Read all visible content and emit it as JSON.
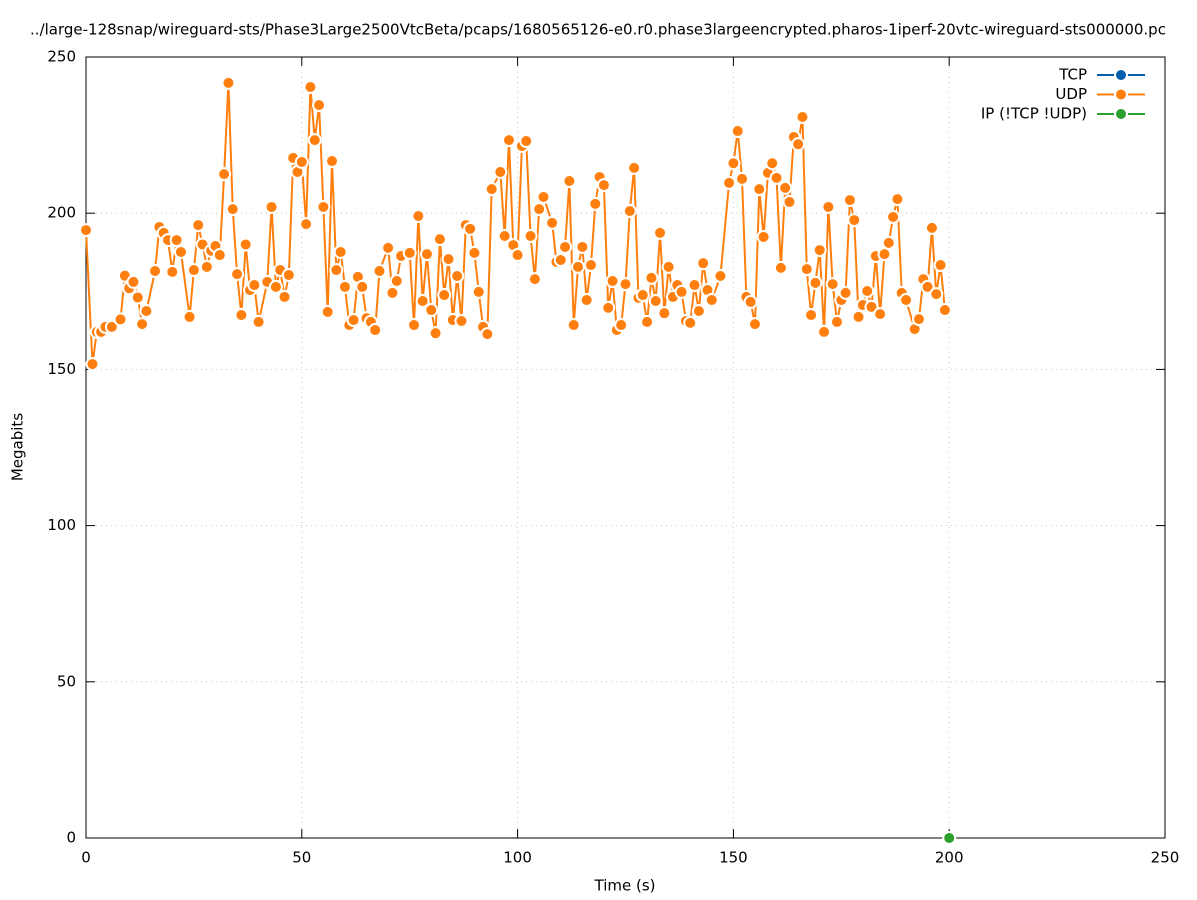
{
  "chart_data": {
    "type": "line",
    "title": "../large-128snap/wireguard-sts/Phase3Large2500VtcBeta/pcaps/1680565126-e0.r0.phase3largeencrypted.pharos-1iperf-20vtc-wireguard-sts000000.pc",
    "x_label": "Time (s)",
    "y_label": "Megabits",
    "xlim": [
      0,
      250
    ],
    "xticks": [
      0,
      50,
      100,
      150,
      200,
      250
    ],
    "ylim": [
      0,
      250
    ],
    "yticks": [
      0,
      50,
      100,
      150,
      200,
      250
    ],
    "grid": true,
    "legend": "top-right",
    "series": [
      {
        "name": "TCP",
        "color": "#0060ad",
        "x": [],
        "values": []
      },
      {
        "name": "UDP",
        "color": "#ff7f0e",
        "x": [
          0,
          1.5,
          2.5,
          3.5,
          4.5,
          6,
          8,
          9,
          10,
          11,
          12,
          13,
          14,
          16,
          17,
          18,
          19,
          20,
          21,
          22,
          24,
          25,
          26,
          27,
          28,
          29,
          30,
          31,
          32,
          33,
          34,
          35,
          36,
          37,
          38,
          39,
          40,
          42,
          43,
          44,
          45,
          46,
          47,
          48,
          49,
          50,
          51,
          52,
          53,
          54,
          55,
          56,
          57,
          58,
          59,
          60,
          61,
          62,
          63,
          64,
          65,
          66,
          67,
          68,
          70,
          71,
          72,
          73,
          75,
          76,
          77,
          78,
          79,
          80,
          81,
          82,
          83,
          84,
          85,
          86,
          87,
          88,
          89,
          90,
          91,
          92,
          93,
          94,
          96,
          97,
          98,
          99,
          100,
          101,
          102,
          103,
          104,
          105,
          106,
          108,
          109,
          110,
          111,
          112,
          113,
          114,
          115,
          116,
          117,
          118,
          119,
          120,
          121,
          122,
          123,
          124,
          125,
          126,
          127,
          128,
          129,
          130,
          131,
          132,
          133,
          134,
          135,
          136,
          137,
          138,
          139,
          140,
          141,
          142,
          143,
          144,
          145,
          147,
          149,
          150,
          151,
          152,
          153,
          154,
          155,
          156,
          157,
          158,
          159,
          160,
          161,
          162,
          163,
          164,
          165,
          166,
          167,
          168,
          169,
          170,
          171,
          172,
          173,
          174,
          175,
          176,
          177,
          178,
          179,
          180,
          181,
          182,
          183,
          184,
          185,
          186,
          187,
          188,
          189,
          190,
          192,
          193,
          194,
          195,
          196,
          197,
          198,
          199
        ],
        "values": [
          194.6,
          151.7,
          162,
          162,
          163.6,
          163.6,
          166,
          180,
          176,
          178,
          173,
          164.5,
          168.7,
          181.5,
          195.6,
          193.7,
          191.4,
          181.2,
          191.4,
          187.6,
          166.8,
          181.8,
          196.2,
          190,
          182.8,
          188,
          189.5,
          186.6,
          212.5,
          241.7,
          201.3,
          180.5,
          167.4,
          190,
          175.4,
          177,
          165.2,
          178,
          202,
          176.4,
          181.8,
          173.2,
          180.2,
          217.7,
          213.2,
          216.4,
          196.5,
          240.4,
          223.4,
          234.6,
          202,
          168.4,
          216.7,
          181.8,
          187.6,
          176.4,
          164.2,
          165.8,
          179.6,
          176.4,
          166.4,
          165.2,
          162.6,
          181.5,
          188.9,
          174.5,
          178.3,
          186.3,
          187.3,
          164.2,
          199.1,
          171.9,
          186.9,
          169,
          161.6,
          191.7,
          173.8,
          185.3,
          165.8,
          179.9,
          165.5,
          196.2,
          195,
          187.3,
          174.8,
          163.6,
          161.3,
          207.7,
          213.2,
          192.7,
          223.4,
          189.8,
          186.6,
          221.5,
          223.1,
          192.7,
          178.9,
          201.3,
          205.2,
          196.9,
          184.4,
          185,
          189.2,
          210.3,
          164.2,
          182.8,
          189.2,
          172.2,
          183.4,
          203,
          211.6,
          209,
          169.7,
          178.3,
          162.6,
          164.2,
          177.3,
          200.7,
          214.5,
          172.9,
          173.8,
          165.2,
          179.3,
          171.9,
          193.7,
          168,
          182.8,
          173.2,
          177,
          174.8,
          165.5,
          164.9,
          177,
          168.7,
          184,
          175.4,
          172.2,
          179.9,
          209.7,
          216,
          226.3,
          211,
          173.2,
          171.6,
          164.5,
          207.7,
          192.4,
          212.9,
          216,
          211.3,
          182.5,
          208.1,
          203.6,
          224.4,
          222.1,
          230.8,
          182.1,
          167.4,
          177.7,
          188.2,
          162,
          202,
          177.3,
          165.2,
          172.2,
          174.5,
          204.2,
          197.8,
          166.8,
          170.6,
          175.1,
          170,
          186.3,
          167.7,
          186.9,
          190.5,
          198.8,
          204.5,
          174.5,
          172.2,
          162.9,
          166.1,
          178.9,
          176.4,
          195.3,
          174.1,
          183.4,
          169
        ]
      },
      {
        "name": "IP (!TCP  !UDP)",
        "color": "#2ca02c",
        "x": [
          200
        ],
        "values": [
          0
        ]
      }
    ]
  }
}
